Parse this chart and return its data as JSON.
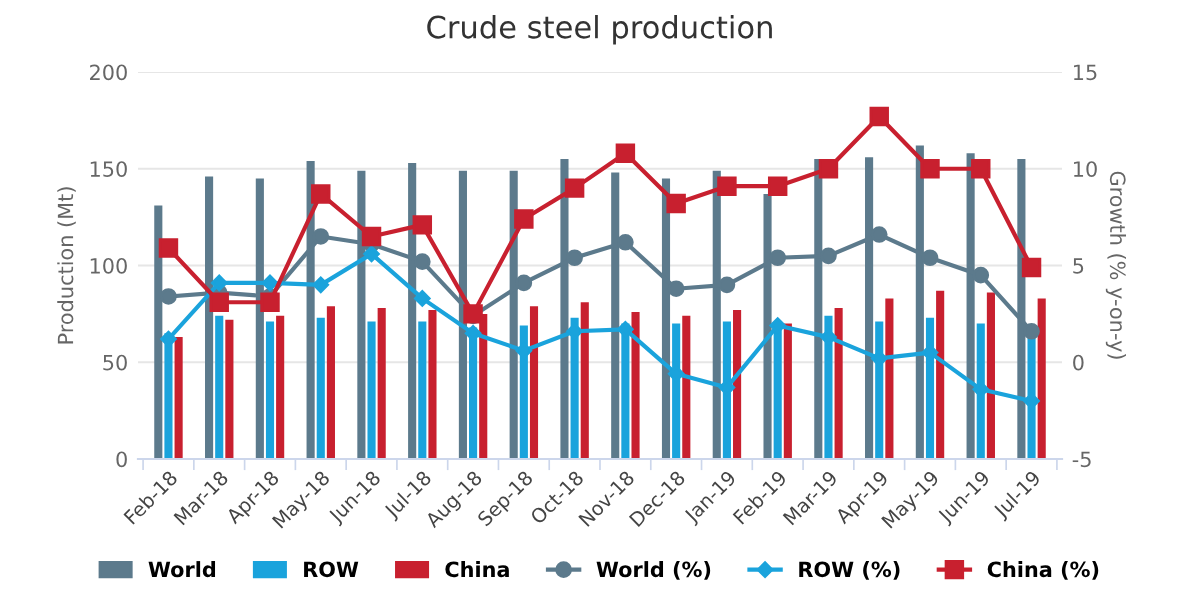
{
  "chart_data": {
    "type": "bar",
    "title": "Crude steel production",
    "ylabel": "Production (Mt)",
    "y2label": "Growth (% y-on-y)",
    "categories": [
      "Feb-18",
      "Mar-18",
      "Apr-18",
      "May-18",
      "Jun-18",
      "Jul-18",
      "Aug-18",
      "Sep-18",
      "Oct-18",
      "Nov-18",
      "Dec-18",
      "Jan-19",
      "Feb-19",
      "Mar-19",
      "Apr-19",
      "May-19",
      "Jun-19",
      "Jul-19"
    ],
    "series": [
      {
        "name": "World",
        "color": "#5c7a8c",
        "values": [
          131,
          146,
          145,
          154,
          149,
          153,
          149,
          149,
          155,
          148,
          145,
          149,
          137,
          155,
          156,
          162,
          158,
          155
        ]
      },
      {
        "name": "ROW",
        "color": "#1aa3dc",
        "values": [
          65,
          74,
          71,
          73,
          71,
          71,
          68,
          69,
          73,
          70,
          70,
          71,
          70,
          74,
          71,
          73,
          70,
          64
        ]
      },
      {
        "name": "China",
        "color": "#c8202f",
        "values": [
          63,
          72,
          74,
          79,
          78,
          77,
          75,
          79,
          81,
          76,
          74,
          77,
          70,
          78,
          83,
          87,
          86,
          83
        ]
      },
      {
        "name": "World (%)",
        "type": "line",
        "axis": "y2",
        "marker": "circle",
        "color": "#5c7a8c",
        "values": [
          3.4,
          3.6,
          3.4,
          6.5,
          6.1,
          5.2,
          2.4,
          4.1,
          5.4,
          6.2,
          3.8,
          4.0,
          5.4,
          5.5,
          6.6,
          5.4,
          4.5,
          1.6
        ]
      },
      {
        "name": "ROW (%)",
        "type": "line",
        "axis": "y2",
        "marker": "diamond",
        "color": "#1aa3dc",
        "values": [
          1.2,
          4.1,
          4.1,
          4.0,
          5.6,
          3.3,
          1.5,
          0.6,
          1.6,
          1.7,
          -0.6,
          -1.3,
          1.9,
          1.3,
          0.2,
          0.5,
          -1.4,
          -2.0
        ]
      },
      {
        "name": "China (%)",
        "type": "line",
        "axis": "y2",
        "marker": "square",
        "color": "#c8202f",
        "values": [
          5.9,
          3.1,
          3.1,
          8.7,
          6.5,
          7.1,
          2.5,
          7.4,
          9.0,
          10.8,
          8.2,
          9.1,
          9.1,
          10.0,
          12.7,
          10.0,
          10.0,
          4.9
        ]
      }
    ],
    "ylim": [
      0,
      200
    ],
    "yticks": [
      0,
      50,
      100,
      150,
      200
    ],
    "y2lim": [
      -5,
      15
    ],
    "y2ticks": [
      -5,
      0,
      5,
      10,
      15
    ],
    "grid": "y",
    "legend": "bottom"
  }
}
